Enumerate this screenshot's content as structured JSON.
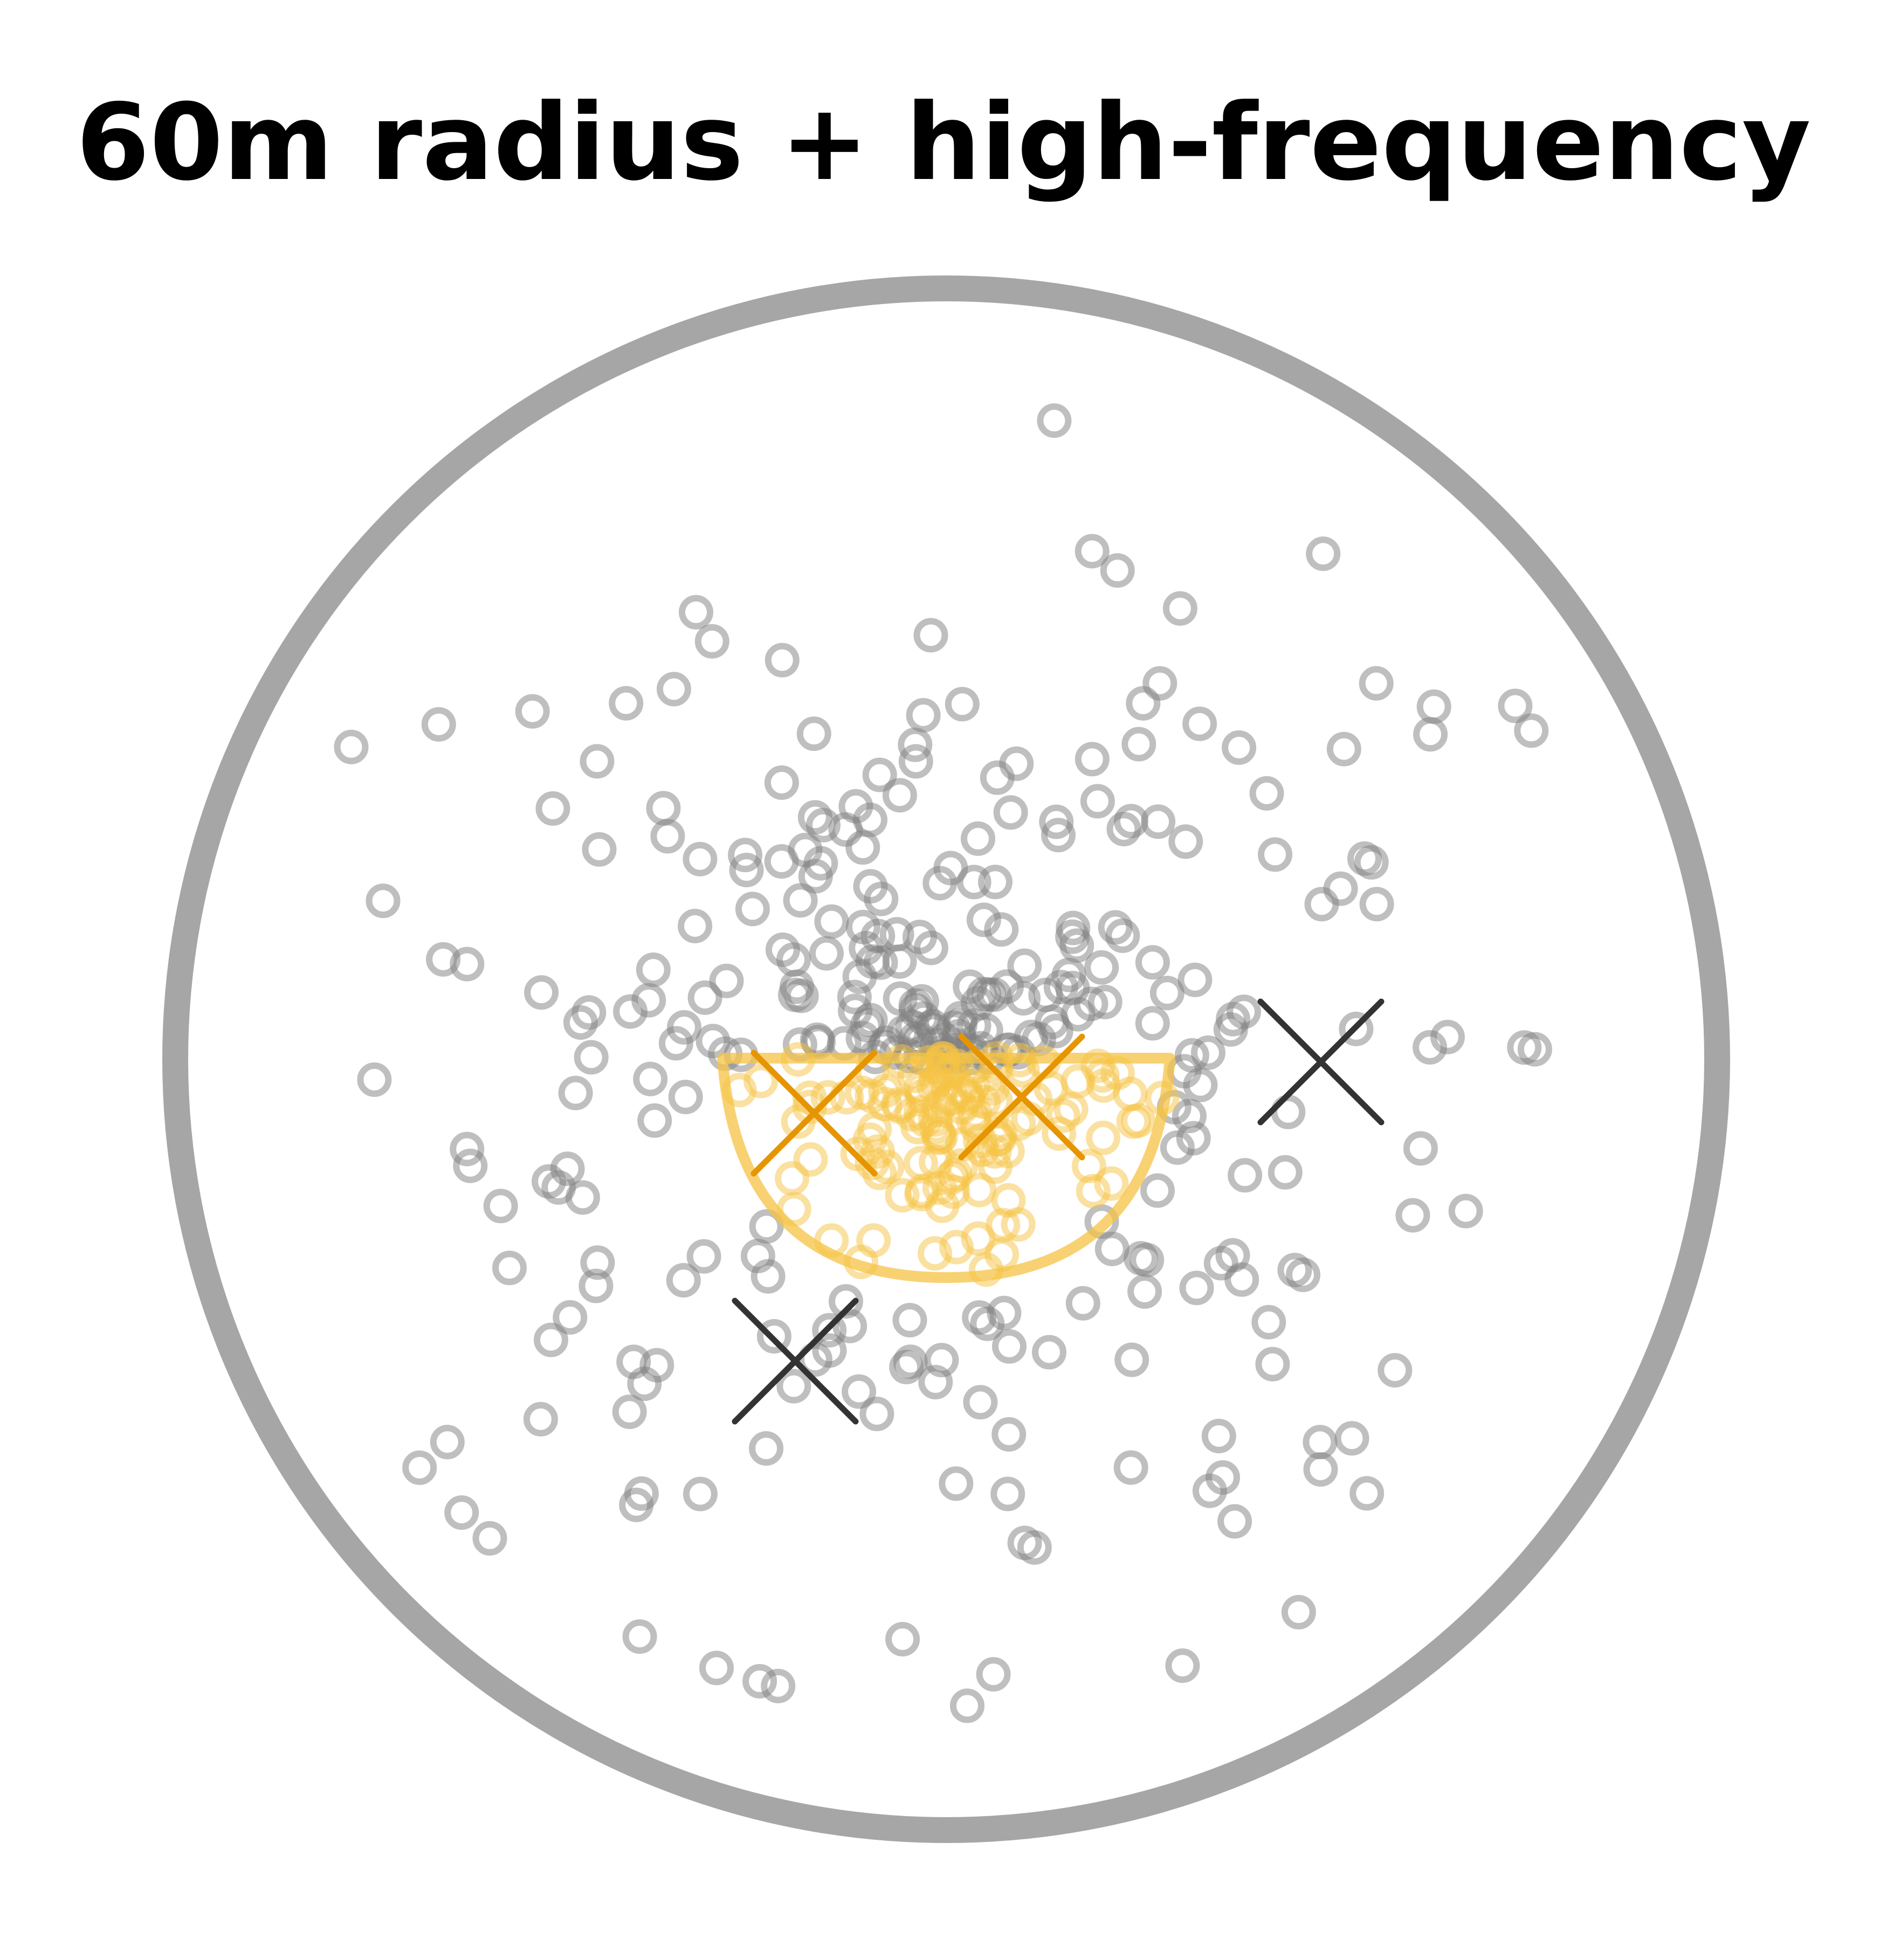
{
  "title": "60m radius + high-frequency",
  "colors": {
    "boundary": "#a6a6a6",
    "point": "#7f7f7f",
    "highlight_point": "#f6c343",
    "highlight_region": "#f6c343",
    "highlight_marker": "#e69500",
    "marker": "#333333",
    "background": "#ffffff"
  },
  "legend": []
}
